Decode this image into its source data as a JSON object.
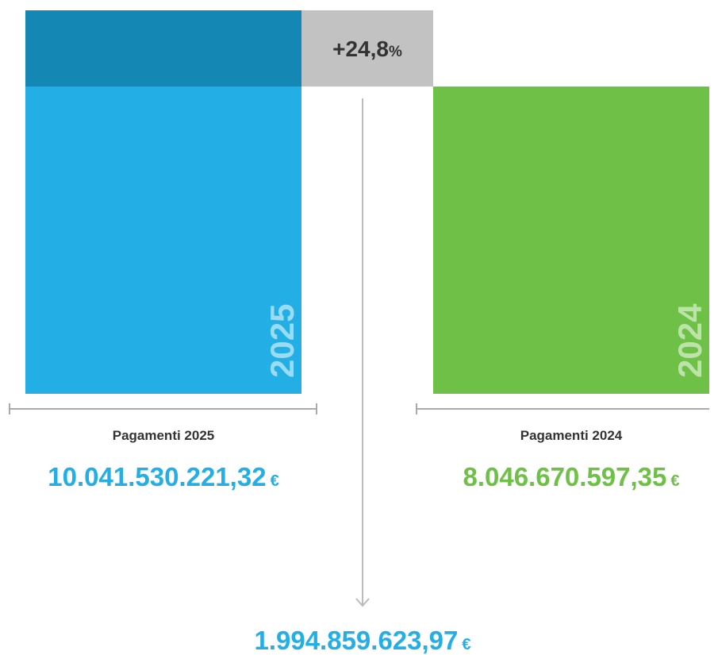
{
  "chart_data": {
    "type": "bar",
    "categories": [
      "2025",
      "2024"
    ],
    "labels": [
      "Pagamenti 2025",
      "Pagamenti 2024"
    ],
    "values": [
      10041530221.32,
      8046670597.35
    ],
    "value_labels": [
      "10.041.530.221,32",
      "8.046.670.597,35"
    ],
    "colors": [
      "#23afe5",
      "#6ec046"
    ],
    "currency": "€",
    "difference": {
      "value": 1994859623.97,
      "label": "1.994.859.623,97",
      "color": "#1487b4"
    },
    "change": {
      "value": 24.8,
      "label": "+24,8",
      "unit": "%"
    }
  }
}
